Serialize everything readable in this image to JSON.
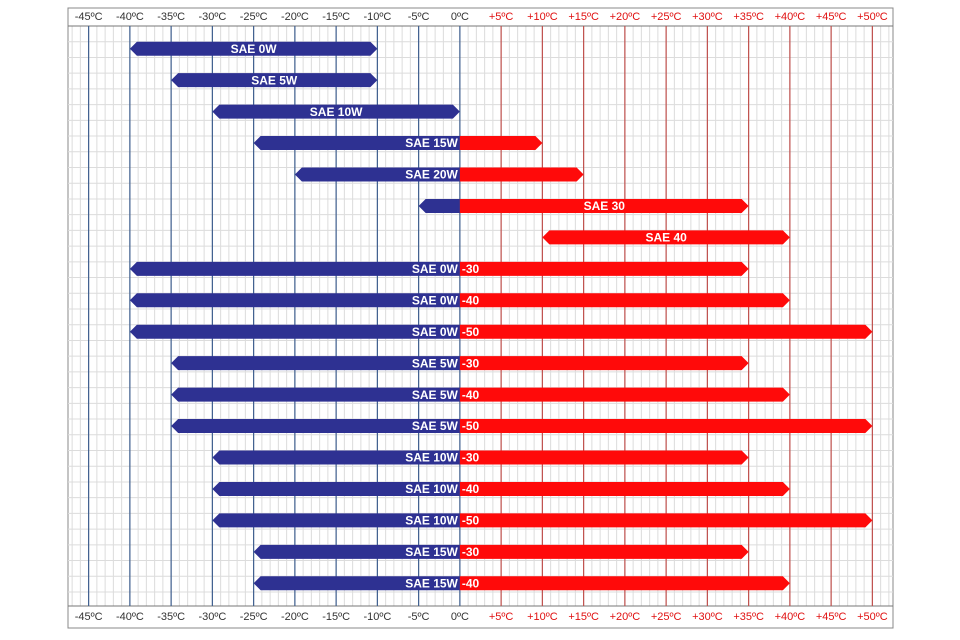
{
  "chart_data": {
    "type": "range-bar",
    "xlim": [
      -47.5,
      52.5
    ],
    "xticks": [
      {
        "value": -45,
        "label": "-45ºC"
      },
      {
        "value": -40,
        "label": "-40ºC"
      },
      {
        "value": -35,
        "label": "-35ºC"
      },
      {
        "value": -30,
        "label": "-30ºC"
      },
      {
        "value": -25,
        "label": "-25ºC"
      },
      {
        "value": -20,
        "label": "-20ºC"
      },
      {
        "value": -15,
        "label": "-15ºC"
      },
      {
        "value": -10,
        "label": "-10ºC"
      },
      {
        "value": -5,
        "label": "-5ºC"
      },
      {
        "value": 0,
        "label": "0ºC"
      },
      {
        "value": 5,
        "label": "+5ºC"
      },
      {
        "value": 10,
        "label": "+10ºC"
      },
      {
        "value": 15,
        "label": "+15ºC"
      },
      {
        "value": 20,
        "label": "+20ºC"
      },
      {
        "value": 25,
        "label": "+25ºC"
      },
      {
        "value": 30,
        "label": "+30ºC"
      },
      {
        "value": 35,
        "label": "+35ºC"
      },
      {
        "value": 40,
        "label": "+40ºC"
      },
      {
        "value": 45,
        "label": "+45ºC"
      },
      {
        "value": 50,
        "label": "+50ºC"
      }
    ],
    "cold_color": "#2e3192",
    "hot_color": "#ff0a0a",
    "grid": true,
    "rows": [
      {
        "cold": [
          -40,
          -10
        ],
        "cold_label": "SAE 0W"
      },
      {
        "cold": [
          -35,
          -10
        ],
        "cold_label": "SAE 5W"
      },
      {
        "cold": [
          -30,
          0
        ],
        "cold_label": "SAE 10W"
      },
      {
        "cold": [
          -25,
          0
        ],
        "cold_label": "SAE 15W",
        "hot": [
          0,
          10
        ]
      },
      {
        "cold": [
          -20,
          0
        ],
        "cold_label": "SAE 20W",
        "hot": [
          0,
          15
        ]
      },
      {
        "cold": [
          -5,
          0
        ],
        "hot": [
          0,
          35
        ],
        "hot_label": "SAE 30"
      },
      {
        "hot": [
          10,
          40
        ],
        "hot_label": "SAE 40"
      },
      {
        "cold": [
          -40,
          0
        ],
        "cold_label": "SAE 0W",
        "hot": [
          0,
          35
        ],
        "hot_label": "-30"
      },
      {
        "cold": [
          -40,
          0
        ],
        "cold_label": "SAE 0W",
        "hot": [
          0,
          40
        ],
        "hot_label": "-40"
      },
      {
        "cold": [
          -40,
          0
        ],
        "cold_label": "SAE 0W",
        "hot": [
          0,
          50
        ],
        "hot_label": "-50"
      },
      {
        "cold": [
          -35,
          0
        ],
        "cold_label": "SAE 5W",
        "hot": [
          0,
          35
        ],
        "hot_label": "-30"
      },
      {
        "cold": [
          -35,
          0
        ],
        "cold_label": "SAE 5W",
        "hot": [
          0,
          40
        ],
        "hot_label": "-40"
      },
      {
        "cold": [
          -35,
          0
        ],
        "cold_label": "SAE 5W",
        "hot": [
          0,
          50
        ],
        "hot_label": "-50"
      },
      {
        "cold": [
          -30,
          0
        ],
        "cold_label": "SAE 10W",
        "hot": [
          0,
          35
        ],
        "hot_label": "-30"
      },
      {
        "cold": [
          -30,
          0
        ],
        "cold_label": "SAE 10W",
        "hot": [
          0,
          40
        ],
        "hot_label": "-40"
      },
      {
        "cold": [
          -30,
          0
        ],
        "cold_label": "SAE 10W",
        "hot": [
          0,
          50
        ],
        "hot_label": "-50"
      },
      {
        "cold": [
          -25,
          0
        ],
        "cold_label": "SAE 15W",
        "hot": [
          0,
          35
        ],
        "hot_label": "-30"
      },
      {
        "cold": [
          -25,
          0
        ],
        "cold_label": "SAE 15W",
        "hot": [
          0,
          40
        ],
        "hot_label": "-40"
      }
    ]
  }
}
